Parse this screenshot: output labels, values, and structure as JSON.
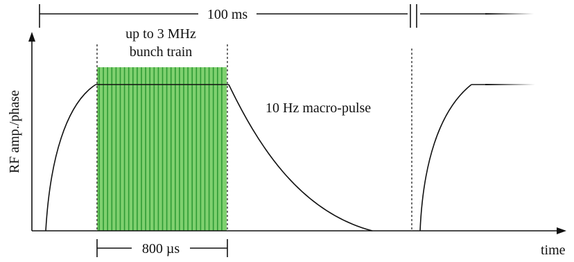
{
  "colors": {
    "ink": "#111111",
    "bunch_fill": "#7fd06f",
    "bunch_stripe": "#2f9b35"
  },
  "labels": {
    "period": "100 ms",
    "bunch_train_line1": "up to 3 MHz",
    "bunch_train_line2": "bunch train",
    "macro_pulse": "10 Hz macro-pulse",
    "flat_top_duration": "800 µs",
    "y_axis": "RF amp./phase",
    "x_axis": "time"
  }
}
